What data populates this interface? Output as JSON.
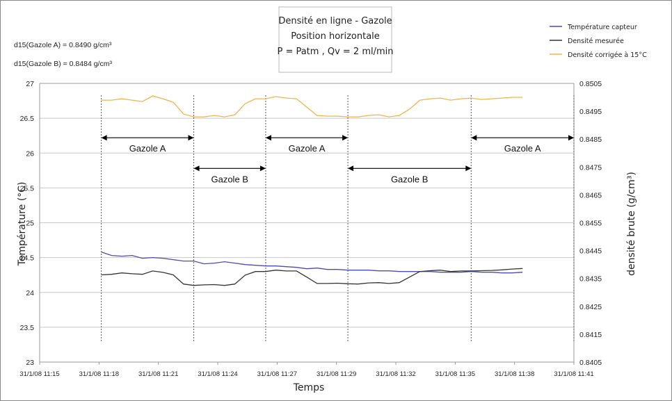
{
  "chart_data": {
    "type": "line",
    "title_lines": [
      "Densité en ligne - Gazole",
      "Position horizontale",
      "P = Patm , Qv = 2 ml/min"
    ],
    "xlabel": "Temps",
    "ylabel_left": "Température (°C)",
    "ylabel_right": "densité brute (g/cm³)",
    "x_ticks": [
      "31/1/08 11:15",
      "31/1/08 11:18",
      "31/1/08 11:21",
      "31/1/08 11:24",
      "31/1/08 11:27",
      "31/1/08 11:29",
      "31/1/08 11:32",
      "31/1/08 11:35",
      "31/1/08 11:38",
      "31/1/08 11:41"
    ],
    "xlim_minutes": [
      0,
      26
    ],
    "ylim_left": [
      23,
      27
    ],
    "ylim_right": [
      0.8405,
      0.8505
    ],
    "y_ticks_left": [
      "23",
      "23.5",
      "24",
      "24.5",
      "25",
      "25.5",
      "26",
      "26.5",
      "27"
    ],
    "y_ticks_right": [
      "0.8405",
      "0.8415",
      "0.8425",
      "0.8435",
      "0.8445",
      "0.8455",
      "0.8465",
      "0.8475",
      "0.8485",
      "0.8495",
      "0.8505"
    ],
    "notes": [
      "d15(Gazole A) = 0.8490 g/cm³",
      "d15(Gazole B) = 0.8484 g/cm³"
    ],
    "legend_position": "top-right",
    "grid": "horizontal",
    "series": [
      {
        "name": "Température capteur",
        "axis": "left",
        "color": "#4b4bb5",
        "x": [
          3.0,
          3.5,
          4.0,
          4.5,
          5.0,
          5.5,
          6.0,
          6.5,
          7.0,
          7.5,
          8.0,
          8.5,
          9.0,
          9.5,
          10.0,
          10.5,
          11.0,
          11.5,
          12.0,
          12.5,
          13.0,
          13.5,
          14.0,
          14.5,
          15.0,
          15.5,
          16.0,
          16.5,
          17.0,
          17.5,
          18.0,
          18.5,
          19.0,
          19.5,
          20.0,
          20.5,
          21.0,
          21.5,
          22.0,
          22.5,
          23.0,
          23.5
        ],
        "y": [
          24.58,
          24.53,
          24.52,
          24.53,
          24.49,
          24.5,
          24.49,
          24.47,
          24.45,
          24.45,
          24.41,
          24.42,
          24.44,
          24.42,
          24.4,
          24.39,
          24.38,
          24.38,
          24.37,
          24.36,
          24.34,
          24.35,
          24.33,
          24.33,
          24.32,
          24.32,
          24.32,
          24.31,
          24.31,
          24.3,
          24.3,
          24.3,
          24.3,
          24.29,
          24.29,
          24.29,
          24.3,
          24.29,
          24.29,
          24.28,
          24.28,
          24.29
        ]
      },
      {
        "name": "Densité mesurée",
        "axis": "right",
        "color": "#333333",
        "x": [
          3.0,
          3.5,
          4.0,
          4.5,
          5.0,
          5.5,
          6.0,
          6.5,
          7.0,
          7.5,
          8.0,
          8.5,
          9.0,
          9.5,
          10.0,
          10.5,
          11.0,
          11.5,
          12.0,
          12.5,
          13.0,
          13.5,
          14.0,
          14.5,
          15.0,
          15.5,
          16.0,
          16.5,
          17.0,
          17.5,
          18.0,
          18.5,
          19.0,
          19.5,
          20.0,
          20.5,
          21.0,
          21.5,
          22.0,
          22.5,
          23.0,
          23.5
        ],
        "y": [
          0.84363,
          0.84365,
          0.8437,
          0.84367,
          0.84365,
          0.84377,
          0.84372,
          0.84363,
          0.8433,
          0.84325,
          0.84327,
          0.84328,
          0.84325,
          0.8433,
          0.84362,
          0.84375,
          0.84375,
          0.8438,
          0.84377,
          0.84377,
          0.84355,
          0.84332,
          0.84332,
          0.84333,
          0.84331,
          0.8433,
          0.84334,
          0.84335,
          0.84332,
          0.84335,
          0.84355,
          0.84375,
          0.84378,
          0.8438,
          0.84375,
          0.84377,
          0.84377,
          0.84378,
          0.84379,
          0.84381,
          0.84384,
          0.84386
        ]
      },
      {
        "name": "Densité corrigée à 15°C",
        "axis": "left",
        "color": "#f0b44a",
        "x": [
          3.0,
          3.5,
          4.0,
          4.5,
          5.0,
          5.5,
          6.0,
          6.5,
          7.0,
          7.5,
          8.0,
          8.5,
          9.0,
          9.5,
          10.0,
          10.5,
          11.0,
          11.5,
          12.0,
          12.5,
          13.0,
          13.5,
          14.0,
          14.5,
          15.0,
          15.5,
          16.0,
          16.5,
          17.0,
          17.5,
          18.0,
          18.5,
          19.0,
          19.5,
          20.0,
          20.5,
          21.0,
          21.5,
          22.0,
          22.5,
          23.0,
          23.5
        ],
        "y": [
          26.76,
          26.76,
          26.78,
          26.76,
          26.74,
          26.82,
          26.78,
          26.73,
          26.56,
          26.52,
          26.52,
          26.54,
          26.52,
          26.55,
          26.71,
          26.78,
          26.78,
          26.81,
          26.79,
          26.78,
          26.66,
          26.54,
          26.53,
          26.53,
          26.52,
          26.52,
          26.54,
          26.55,
          26.52,
          26.54,
          26.63,
          26.76,
          26.78,
          26.79,
          26.76,
          26.78,
          26.79,
          26.77,
          26.78,
          26.79,
          26.8,
          26.8
        ]
      }
    ],
    "segments": [
      {
        "label": "Gazole A",
        "x_start": 3.0,
        "x_end": 7.5,
        "y": 26.22
      },
      {
        "label": "Gazole B",
        "x_start": 7.5,
        "x_end": 11.0,
        "y": 25.78
      },
      {
        "label": "Gazole A",
        "x_start": 11.0,
        "x_end": 15.0,
        "y": 26.22
      },
      {
        "label": "Gazole B",
        "x_start": 15.0,
        "x_end": 21.0,
        "y": 25.78
      },
      {
        "label": "Gazole A",
        "x_start": 21.0,
        "x_end": 26.0,
        "y": 26.22
      }
    ],
    "boundary_lines_x": [
      3.0,
      7.5,
      11.0,
      15.0,
      21.0,
      26.0
    ]
  }
}
